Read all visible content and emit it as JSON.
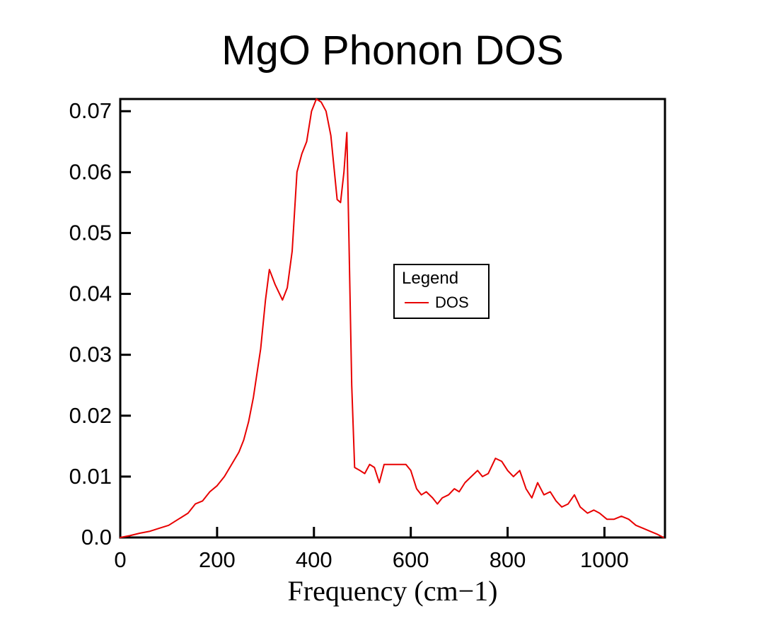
{
  "page": {
    "background": "#ffffff"
  },
  "chart_data": {
    "type": "line",
    "title": "MgO Phonon DOS",
    "xlabel": "Frequency (cm−1)",
    "ylabel": "",
    "xlim": [
      0,
      1125
    ],
    "ylim": [
      0,
      0.072
    ],
    "x_ticks": [
      0,
      200,
      400,
      600,
      800,
      1000
    ],
    "x_tick_labels": [
      "0",
      "200",
      "400",
      "600",
      "800",
      "1000"
    ],
    "y_ticks": [
      0.0,
      0.01,
      0.02,
      0.03,
      0.04,
      0.05,
      0.06,
      0.07
    ],
    "y_tick_labels": [
      "0.0",
      "0.01",
      "0.02",
      "0.03",
      "0.04",
      "0.05",
      "0.06",
      "0.07"
    ],
    "grid": false,
    "frame_color": "#000000",
    "legend": {
      "title": "Legend",
      "position": "center",
      "entries": [
        {
          "label": "DOS",
          "color": "#e80000"
        }
      ]
    },
    "series": [
      {
        "name": "DOS",
        "color": "#e80000",
        "x": [
          0,
          20,
          40,
          60,
          80,
          100,
          120,
          140,
          155,
          170,
          185,
          200,
          215,
          230,
          245,
          255,
          265,
          275,
          290,
          300,
          308,
          320,
          335,
          345,
          355,
          365,
          375,
          385,
          395,
          405,
          415,
          425,
          435,
          448,
          455,
          462,
          468,
          472,
          478,
          484,
          495,
          505,
          515,
          525,
          535,
          545,
          560,
          575,
          590,
          600,
          612,
          622,
          632,
          645,
          655,
          665,
          678,
          690,
          700,
          712,
          725,
          738,
          748,
          760,
          775,
          788,
          800,
          812,
          825,
          838,
          850,
          862,
          875,
          888,
          900,
          912,
          925,
          938,
          950,
          965,
          978,
          990,
          1005,
          1020,
          1035,
          1050,
          1065,
          1080,
          1095,
          1110,
          1122
        ],
        "y": [
          0.0,
          0.0003,
          0.0007,
          0.001,
          0.0015,
          0.002,
          0.003,
          0.004,
          0.0055,
          0.006,
          0.0075,
          0.0085,
          0.01,
          0.012,
          0.014,
          0.016,
          0.019,
          0.023,
          0.031,
          0.039,
          0.044,
          0.0415,
          0.039,
          0.041,
          0.047,
          0.06,
          0.063,
          0.065,
          0.07,
          0.072,
          0.0715,
          0.07,
          0.066,
          0.0555,
          0.055,
          0.06,
          0.0665,
          0.05,
          0.025,
          0.0115,
          0.011,
          0.0105,
          0.012,
          0.0115,
          0.009,
          0.012,
          0.012,
          0.012,
          0.012,
          0.011,
          0.008,
          0.007,
          0.0075,
          0.0065,
          0.0055,
          0.0065,
          0.007,
          0.008,
          0.0075,
          0.009,
          0.01,
          0.011,
          0.01,
          0.0105,
          0.013,
          0.0125,
          0.011,
          0.01,
          0.011,
          0.008,
          0.0065,
          0.009,
          0.007,
          0.0075,
          0.006,
          0.005,
          0.0055,
          0.007,
          0.005,
          0.004,
          0.0045,
          0.004,
          0.003,
          0.003,
          0.0035,
          0.003,
          0.002,
          0.0015,
          0.001,
          0.0005,
          0.0
        ]
      }
    ]
  }
}
